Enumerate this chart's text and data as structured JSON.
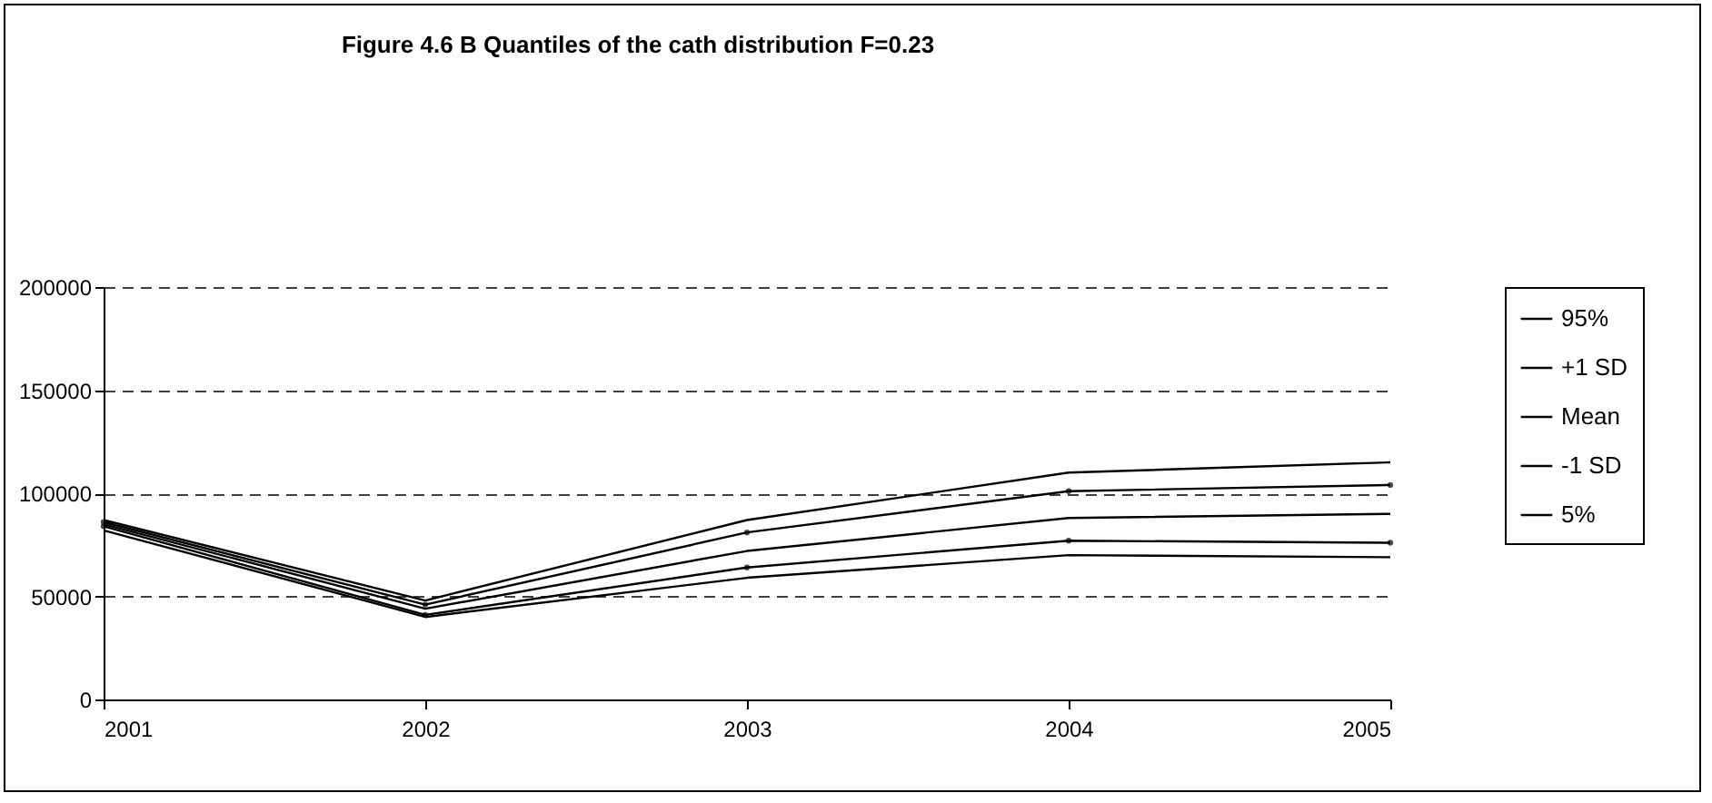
{
  "chart_data": {
    "type": "line",
    "title": "Figure 4.6 B Quantiles of the cath distribution F=0.23",
    "x": [
      2001,
      2002,
      2003,
      2004,
      2005
    ],
    "series": [
      {
        "name": "95%",
        "color": "#000000",
        "values": [
          87000,
          48000,
          87000,
          110000,
          115000
        ]
      },
      {
        "name": "+1 SD",
        "color": "#000000",
        "marker": "circle",
        "values": [
          86000,
          46000,
          81000,
          101000,
          104000
        ]
      },
      {
        "name": "Mean",
        "color": "#000000",
        "values": [
          85000,
          44000,
          72000,
          88000,
          90000
        ]
      },
      {
        "name": "-1 SD",
        "color": "#000000",
        "marker": "circle",
        "values": [
          84000,
          41000,
          64000,
          77000,
          76000
        ]
      },
      {
        "name": "5%",
        "color": "#000000",
        "values": [
          82000,
          40000,
          59000,
          70000,
          69000
        ]
      }
    ],
    "xlim": [
      2001,
      2005
    ],
    "xticks": [
      2001,
      2002,
      2003,
      2004,
      2005
    ],
    "ylim": [
      0,
      200000
    ],
    "yticks": [
      0,
      50000,
      100000,
      150000,
      200000
    ],
    "grid": "y",
    "legend": "right",
    "line_style": "solid"
  }
}
